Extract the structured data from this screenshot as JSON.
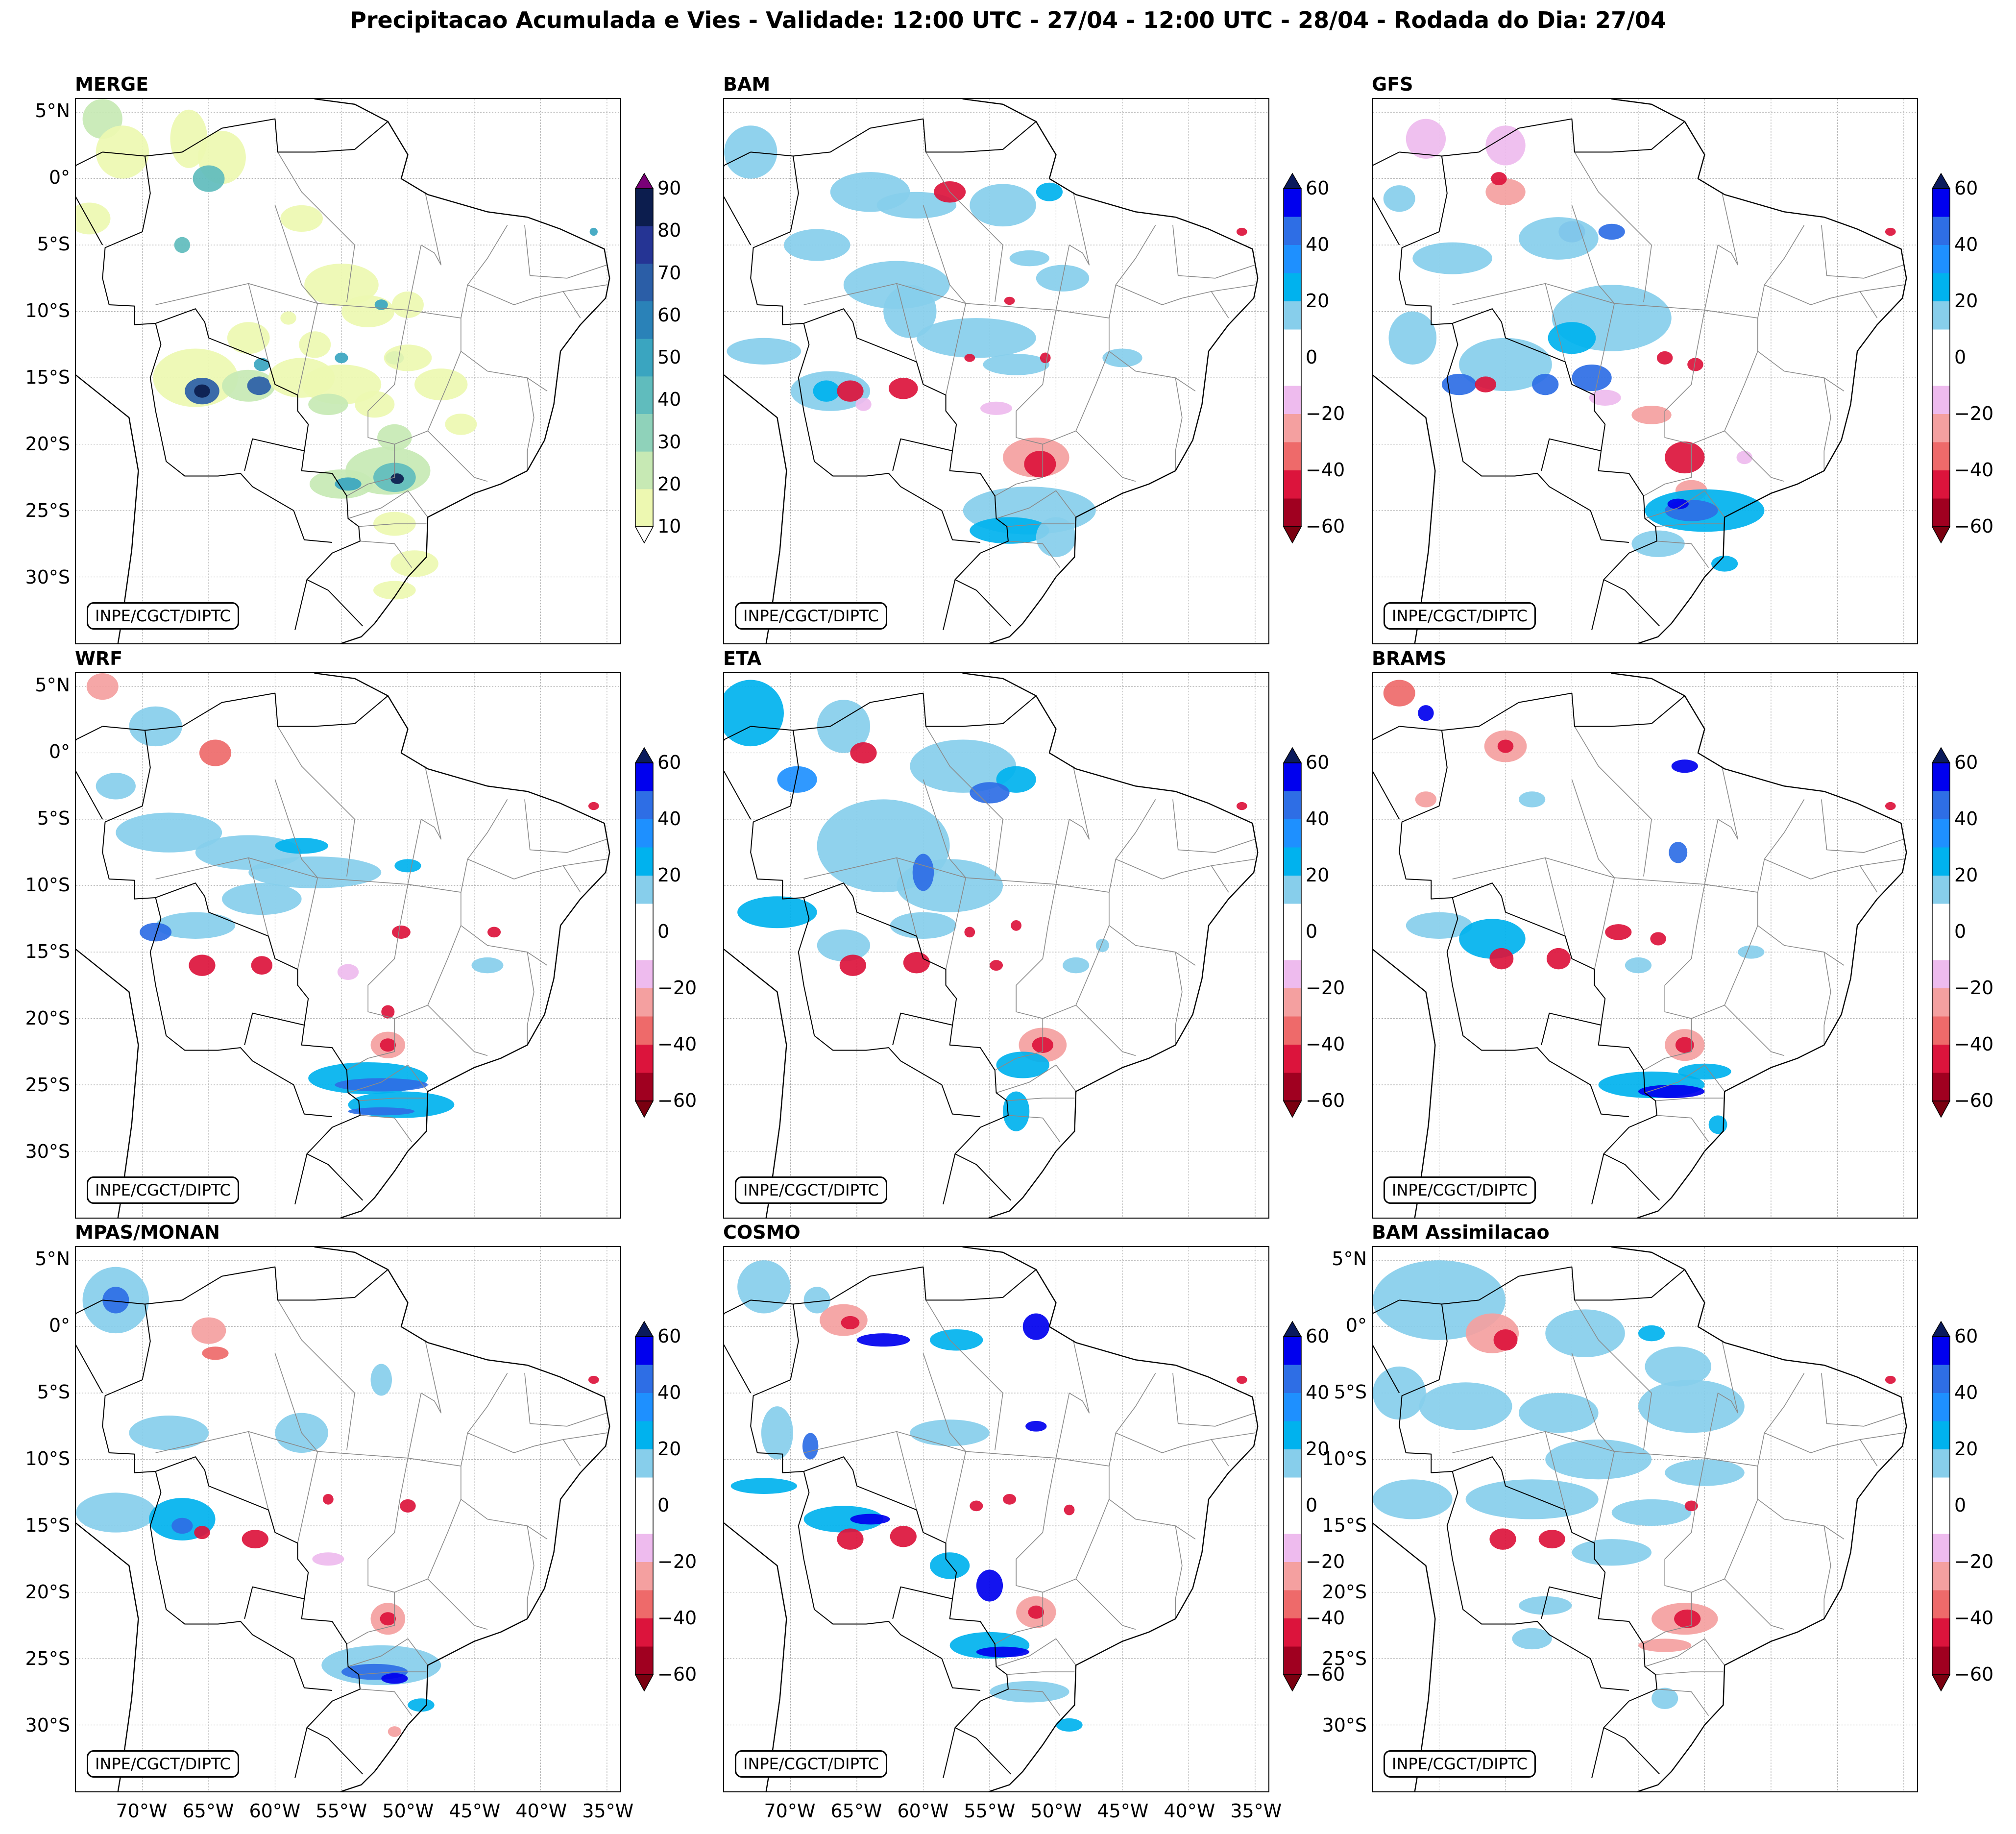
{
  "figure_title": "Precipitacao Acumulada e Vies - Validade: 12:00 UTC - 27/04 - 12:00 UTC - 28/04 - Rodada do Dia: 27/04",
  "credit": "INPE/CGCT/DIPTC",
  "panels": [
    {
      "id": "merge",
      "title": "MERGE",
      "colorbar": "merge"
    },
    {
      "id": "bam",
      "title": "BAM",
      "colorbar": "bias"
    },
    {
      "id": "gfs",
      "title": "GFS",
      "colorbar": "bias"
    },
    {
      "id": "wrf",
      "title": "WRF",
      "colorbar": "bias"
    },
    {
      "id": "eta",
      "title": "ETA",
      "colorbar": "bias"
    },
    {
      "id": "brams",
      "title": "BRAMS",
      "colorbar": "bias"
    },
    {
      "id": "mpas",
      "title": "MPAS/MONAN",
      "colorbar": "bias"
    },
    {
      "id": "cosmo",
      "title": "COSMO",
      "colorbar": "bias"
    },
    {
      "id": "bamassim",
      "title": "BAM Assimilacao",
      "colorbar": "bias"
    }
  ],
  "latitude_labels": [
    "5°N",
    "0°",
    "5°S",
    "10°S",
    "15°S",
    "20°S",
    "25°S",
    "30°S"
  ],
  "longitude_labels": [
    "70°W",
    "65°W",
    "60°W",
    "55°W",
    "50°W",
    "45°W",
    "40°W",
    "35°W"
  ],
  "colorbars": {
    "merge": {
      "ticks": [
        "90",
        "80",
        "70",
        "60",
        "50",
        "40",
        "30",
        "20",
        "10"
      ],
      "colors": [
        "#0c1d4e",
        "#253494",
        "#2b5ea7",
        "#2a82b8",
        "#3aa5c0",
        "#60bcbd",
        "#8fd2ba",
        "#c7e9b4",
        "#edf8b1"
      ],
      "extend_top": "#7a0177",
      "extend_bottom": "#ffffff"
    },
    "bias": {
      "ticks": [
        "60",
        "40",
        "20",
        "0",
        "−20",
        "−40",
        "−60"
      ],
      "colors": [
        "#0000ee",
        "#2e6ee5",
        "#1e90ff",
        "#00b2ee",
        "#87ceeb",
        "#ffffff",
        "#ffffff",
        "#eebbee",
        "#f4a0a0",
        "#ee6a6a",
        "#dc143c",
        "#a00020"
      ],
      "extend_top": "#0a1a5c",
      "extend_bottom": "#7a0010"
    }
  }
}
